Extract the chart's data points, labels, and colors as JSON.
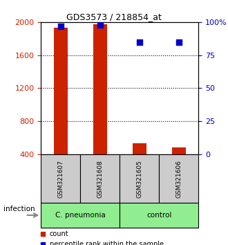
{
  "title": "GDS3573 / 218854_at",
  "samples": [
    "GSM321607",
    "GSM321608",
    "GSM321605",
    "GSM321606"
  ],
  "counts": [
    1930,
    1970,
    530,
    480
  ],
  "percentile_ranks": [
    97,
    98,
    85,
    85
  ],
  "ylim_left": [
    400,
    2000
  ],
  "ylim_right": [
    0,
    100
  ],
  "yticks_left": [
    400,
    800,
    1200,
    1600,
    2000
  ],
  "yticks_right": [
    0,
    25,
    50,
    75,
    100
  ],
  "ytick_labels_right": [
    "0",
    "25",
    "50",
    "75",
    "100%"
  ],
  "group_labels": [
    "C. pneumonia",
    "control"
  ],
  "group_colors": [
    "#90EE90",
    "#90EE90"
  ],
  "group_ranges": [
    [
      0,
      1
    ],
    [
      2,
      3
    ]
  ],
  "bar_color": "#CC2200",
  "dot_color": "#0000CC",
  "sample_box_color": "#CCCCCC",
  "infection_label": "infection",
  "legend_count_label": "count",
  "legend_percentile_label": "percentile rank within the sample",
  "left_axis_color": "#CC2200",
  "right_axis_color": "#0000BB",
  "arrow_color": "#888888"
}
